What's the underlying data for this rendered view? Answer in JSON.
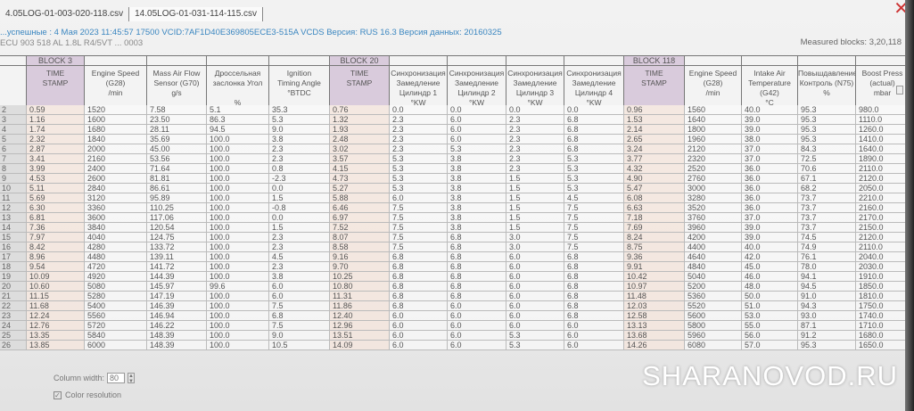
{
  "tabs": [
    "4.05LOG-01-003-020-118.csv",
    "14.05LOG-01-031-114-115.csv"
  ],
  "info_line1": "...успешные : 4 Мая 2023 11:45:57 17500 VCID:7AF1D40E369805ECE3-515A VCDS Версия: RUS 16.3 Версия данных: 20160325",
  "info_line2": "ECU 903 518 AL 1.8L R4/5VT ... 0003",
  "measured_blocks": "Measured blocks: 3,20,118",
  "blocks": [
    "BLOCK 3",
    "BLOCK 20",
    "BLOCK 118"
  ],
  "headers": [
    "TIME\nSTAMP",
    "Engine Speed\n(G28)\n/min",
    "Mass Air Flow\nSensor (G70)\ng/s",
    "Дроссельная\nзаслонка Угол\n\n%",
    "Ignition\nTiming Angle\n°BTDC",
    "TIME\nSTAMP",
    "Синхронизация\nЗамедление\nЦилиндр 1\n°KW",
    "Синхронизация\nЗамедление\nЦилиндр 2\n°KW",
    "Синхронизация\nЗамедление\nЦилиндр 3\n°KW",
    "Синхронизация\nЗамедление\nЦилиндр 4\n°KW",
    "TIME\nSTAMP",
    "Engine Speed\n(G28)\n/min",
    "Intake Air\nTemperature\n(G42)\n°C",
    "Повышдавление\nКонтроль (N75)\n%",
    "Boost Press\n(actual)\nmbar"
  ],
  "row_numbers": [
    "2",
    "3",
    "4",
    "5",
    "6",
    "7",
    "8",
    "9",
    "10",
    "11",
    "12",
    "13",
    "14",
    "15",
    "16",
    "17",
    "18",
    "19",
    "20",
    "21",
    "22",
    "23",
    "24",
    "25",
    "26"
  ],
  "columns": [
    [
      "0.59",
      "1.16",
      "1.74",
      "2.32",
      "2.87",
      "3.41",
      "3.99",
      "4.53",
      "5.11",
      "5.69",
      "6.30",
      "6.81",
      "7.36",
      "7.97",
      "8.42",
      "8.96",
      "9.54",
      "10.09",
      "10.60",
      "11.15",
      "11.68",
      "12.24",
      "12.76",
      "13.35",
      "13.85"
    ],
    [
      "1520",
      "1600",
      "1680",
      "1840",
      "2000",
      "2160",
      "2400",
      "2600",
      "2840",
      "3120",
      "3360",
      "3600",
      "3840",
      "4040",
      "4280",
      "4480",
      "4720",
      "4920",
      "5080",
      "5280",
      "5400",
      "5560",
      "5720",
      "5840",
      "6000"
    ],
    [
      "7.58",
      "23.50",
      "28.11",
      "35.69",
      "45.00",
      "53.56",
      "71.64",
      "81.81",
      "86.61",
      "95.89",
      "110.25",
      "117.06",
      "120.54",
      "124.75",
      "133.72",
      "139.11",
      "141.72",
      "144.39",
      "145.97",
      "147.19",
      "146.39",
      "146.94",
      "146.22",
      "148.39",
      "148.39"
    ],
    [
      "5.1",
      "86.3",
      "94.5",
      "100.0",
      "100.0",
      "100.0",
      "100.0",
      "100.0",
      "100.0",
      "100.0",
      "100.0",
      "100.0",
      "100.0",
      "100.0",
      "100.0",
      "100.0",
      "100.0",
      "100.0",
      "99.6",
      "100.0",
      "100.0",
      "100.0",
      "100.0",
      "100.0",
      "100.0"
    ],
    [
      "35.3",
      "5.3",
      "9.0",
      "3.8",
      "2.3",
      "2.3",
      "0.8",
      "-2.3",
      "0.0",
      "1.5",
      "-0.8",
      "0.0",
      "1.5",
      "2.3",
      "2.3",
      "4.5",
      "2.3",
      "3.8",
      "6.0",
      "6.0",
      "7.5",
      "6.8",
      "7.5",
      "9.0",
      "10.5"
    ],
    [
      "0.76",
      "1.32",
      "1.93",
      "2.48",
      "3.02",
      "3.57",
      "4.15",
      "4.73",
      "5.27",
      "5.88",
      "6.46",
      "6.97",
      "7.52",
      "8.07",
      "8.58",
      "9.16",
      "9.70",
      "10.25",
      "10.80",
      "11.31",
      "11.86",
      "12.40",
      "12.96",
      "13.51",
      "14.09"
    ],
    [
      "0.0",
      "2.3",
      "2.3",
      "2.3",
      "2.3",
      "5.3",
      "5.3",
      "5.3",
      "5.3",
      "6.0",
      "7.5",
      "7.5",
      "7.5",
      "7.5",
      "7.5",
      "6.8",
      "6.8",
      "6.8",
      "6.8",
      "6.8",
      "6.8",
      "6.0",
      "6.0",
      "6.0",
      "6.0"
    ],
    [
      "0.0",
      "6.0",
      "6.0",
      "6.0",
      "5.3",
      "3.8",
      "3.8",
      "3.8",
      "3.8",
      "3.8",
      "3.8",
      "3.8",
      "3.8",
      "6.8",
      "6.8",
      "6.8",
      "6.8",
      "6.8",
      "6.8",
      "6.8",
      "6.0",
      "6.0",
      "6.0",
      "6.0",
      "6.0"
    ],
    [
      "0.0",
      "2.3",
      "2.3",
      "2.3",
      "2.3",
      "2.3",
      "2.3",
      "1.5",
      "1.5",
      "1.5",
      "1.5",
      "1.5",
      "1.5",
      "3.0",
      "3.0",
      "6.0",
      "6.0",
      "6.0",
      "6.0",
      "6.0",
      "6.0",
      "6.0",
      "6.0",
      "5.3",
      "5.3"
    ],
    [
      "0.0",
      "6.8",
      "6.8",
      "6.8",
      "6.8",
      "5.3",
      "5.3",
      "5.3",
      "5.3",
      "4.5",
      "7.5",
      "7.5",
      "7.5",
      "7.5",
      "7.5",
      "6.8",
      "6.8",
      "6.8",
      "6.8",
      "6.8",
      "6.8",
      "6.8",
      "6.0",
      "6.0",
      "6.0"
    ],
    [
      "0.96",
      "1.53",
      "2.14",
      "2.65",
      "3.24",
      "3.77",
      "4.32",
      "4.90",
      "5.47",
      "6.08",
      "6.63",
      "7.18",
      "7.69",
      "8.24",
      "8.75",
      "9.36",
      "9.91",
      "10.42",
      "10.97",
      "11.48",
      "12.03",
      "12.58",
      "13.13",
      "13.68",
      "14.26"
    ],
    [
      "1560",
      "1640",
      "1800",
      "1960",
      "2120",
      "2320",
      "2520",
      "2760",
      "3000",
      "3280",
      "3520",
      "3760",
      "3960",
      "4200",
      "4400",
      "4640",
      "4840",
      "5040",
      "5200",
      "5360",
      "5520",
      "5600",
      "5800",
      "5960",
      "6080"
    ],
    [
      "40.0",
      "39.0",
      "39.0",
      "38.0",
      "37.0",
      "37.0",
      "36.0",
      "36.0",
      "36.0",
      "36.0",
      "36.0",
      "37.0",
      "39.0",
      "39.0",
      "40.0",
      "42.0",
      "45.0",
      "46.0",
      "48.0",
      "50.0",
      "51.0",
      "53.0",
      "55.0",
      "56.0",
      "57.0"
    ],
    [
      "95.3",
      "95.3",
      "95.3",
      "95.3",
      "84.3",
      "72.5",
      "70.6",
      "67.1",
      "68.2",
      "73.7",
      "73.7",
      "73.7",
      "73.7",
      "74.5",
      "74.9",
      "76.1",
      "78.0",
      "94.1",
      "94.5",
      "91.0",
      "94.3",
      "93.0",
      "87.1",
      "91.2",
      "95.3"
    ],
    [
      "980.0",
      "1110.0",
      "1260.0",
      "1410.0",
      "1640.0",
      "1890.0",
      "2110.0",
      "2120.0",
      "2050.0",
      "2210.0",
      "2160.0",
      "2170.0",
      "2150.0",
      "2120.0",
      "2110.0",
      "2040.0",
      "2030.0",
      "1910.0",
      "1850.0",
      "1810.0",
      "1750.0",
      "1740.0",
      "1710.0",
      "1680.0",
      "1650.0"
    ]
  ],
  "footer": {
    "column_width_label": "Column width:",
    "column_width_value": "80",
    "color_resolution_label": "Color resolution",
    "color_resolution_checked": true
  },
  "watermark": "SHARANOVOD.RU"
}
